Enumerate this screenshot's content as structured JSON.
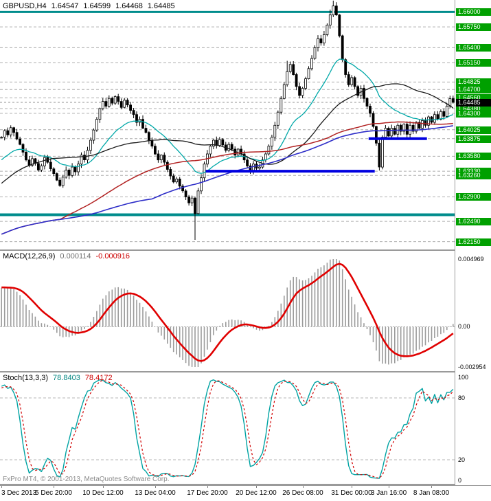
{
  "header": {
    "symbol_period": "GBPUSD,H4",
    "open": "1.64547",
    "high": "1.64599",
    "low": "1.64468",
    "close": "1.64485"
  },
  "macd_panel": {
    "label": "MACD(12,26,9)",
    "value_main": "0.000114",
    "value_signal": "-0.000916",
    "axis_max_label": "0.004969",
    "axis_zero_label": "0.00",
    "axis_min_label": "-0.002954"
  },
  "stoch_panel": {
    "label": "Stoch(13,3,3)",
    "value_k": "78.8403",
    "value_d": "78.4172",
    "axis_labels": [
      {
        "text": "100",
        "value": 100
      },
      {
        "text": "80",
        "value": 80
      },
      {
        "text": "20",
        "value": 20
      },
      {
        "text": "0",
        "value": 0
      }
    ]
  },
  "footer_copyright": "FxPro MT4, © 2001-2013, MetaQuotes Software Corp.",
  "time_axis": {
    "labels": [
      {
        "text": "3 Dec 2013",
        "index": 0
      },
      {
        "text": "5 Dec 20:00",
        "index": 17
      },
      {
        "text": "10 Dec 12:00",
        "index": 33
      },
      {
        "text": "13 Dec 04:00",
        "index": 50
      },
      {
        "text": "17 Dec 20:00",
        "index": 67
      },
      {
        "text": "20 Dec 12:00",
        "index": 83
      },
      {
        "text": "26 Dec 08:00",
        "index": 98
      },
      {
        "text": "31 Dec 00:00",
        "index": 114
      },
      {
        "text": "3 Jan 16:00",
        "index": 126
      },
      {
        "text": "8 Jan 08:00",
        "index": 140
      }
    ]
  },
  "price_axis": {
    "badge_color": "#00a000",
    "current": {
      "text": "1.64485",
      "value": 1.64485
    },
    "badges": [
      {
        "text": "1.66000",
        "value": 1.66
      },
      {
        "text": "1.65750",
        "value": 1.6575
      },
      {
        "text": "1.65400",
        "value": 1.654
      },
      {
        "text": "1.65150",
        "value": 1.6515
      },
      {
        "text": "1.64825",
        "value": 1.64825
      },
      {
        "text": "1.64700",
        "value": 1.647
      },
      {
        "text": "1.64560",
        "value": 1.6456
      },
      {
        "text": "1.64380",
        "value": 1.6438
      },
      {
        "text": "1.64300",
        "value": 1.643
      },
      {
        "text": "1.64025",
        "value": 1.64025
      },
      {
        "text": "1.63875",
        "value": 1.63875
      },
      {
        "text": "1.63580",
        "value": 1.6358
      },
      {
        "text": "1.63330",
        "value": 1.6333
      },
      {
        "text": "1.63260",
        "value": 1.6326
      },
      {
        "text": "1.62900",
        "value": 1.629
      },
      {
        "text": "1.62490",
        "value": 1.6249
      },
      {
        "text": "1.62150",
        "value": 1.6215
      }
    ]
  },
  "chart_data": {
    "type": "candlestick",
    "symbol": "GBPUSD",
    "timeframe": "H4",
    "title": "GBPUSD,H4",
    "price_range": [
      1.6203,
      1.662
    ],
    "current_price": 1.64485,
    "teal_levels": [
      {
        "value": 1.66,
        "width": 3
      },
      {
        "value": 1.626,
        "width": 4
      }
    ],
    "support_segments": [
      {
        "value": 1.6333,
        "from_index": 67,
        "to_index": 122
      },
      {
        "value": 1.63875,
        "from_index": 120,
        "to_index": 139
      }
    ],
    "moving_averages": [
      {
        "name": "ma-teal-ema21",
        "period": 21,
        "method": "ema",
        "color": "#00a8a8",
        "width": 1.3
      },
      {
        "name": "ma-black-sma40",
        "period": 40,
        "method": "sma",
        "color": "#1a1a1a",
        "width": 1.3
      },
      {
        "name": "ma-red-sma100",
        "period": 100,
        "method": "sma",
        "color": "#b22222",
        "width": 1.5
      },
      {
        "name": "ma-blue-sma130",
        "period": 130,
        "method": "sma",
        "color": "#2d2dc8",
        "width": 1.6
      }
    ],
    "macd": {
      "fast": 12,
      "slow": 26,
      "signal": 9,
      "range": [
        -0.002954,
        0.004969
      ],
      "last_main": 0.000114,
      "last_signal": -0.000916
    },
    "stoch": {
      "k_period": 13,
      "slowing": 3,
      "d_period": 3,
      "upper": 80,
      "lower": 20,
      "last_k": 78.8403,
      "last_d": 78.4172
    },
    "prehistory_closes": [
      1.606,
      1.607,
      1.6064,
      1.6073,
      1.6083,
      1.6077,
      1.6085,
      1.6095,
      1.6089,
      1.6098,
      1.6108,
      1.6102,
      1.611,
      1.612,
      1.6114,
      1.6123,
      1.6133,
      1.6127,
      1.6135,
      1.6145,
      1.6139,
      1.6148,
      1.6158,
      1.6152,
      1.616,
      1.617,
      1.6164,
      1.6173,
      1.6183,
      1.6177,
      1.6185,
      1.6195,
      1.6189,
      1.6198,
      1.6208,
      1.6202,
      1.621,
      1.622,
      1.6214,
      1.6223,
      1.6233,
      1.6227,
      1.6235,
      1.6245,
      1.6239,
      1.6248,
      1.6258,
      1.6252,
      1.626,
      1.627,
      1.6265,
      1.6273,
      1.6283,
      1.6277,
      1.6285,
      1.6295,
      1.629,
      1.6298,
      1.6308,
      1.6302,
      1.631,
      1.632,
      1.6315,
      1.6323,
      1.6333,
      1.6327,
      1.6335,
      1.6345,
      1.634,
      1.6348,
      1.6358,
      1.6352,
      1.636,
      1.637,
      1.6365,
      1.6373,
      1.6383,
      1.6377,
      1.6385,
      1.639
    ],
    "closes": [
      1.639,
      1.6401,
      1.6394,
      1.6406,
      1.6398,
      1.6387,
      1.6378,
      1.6365,
      1.6352,
      1.6343,
      1.6354,
      1.6346,
      1.6335,
      1.6342,
      1.6356,
      1.6348,
      1.6337,
      1.6329,
      1.6318,
      1.6309,
      1.6323,
      1.6335,
      1.6326,
      1.634,
      1.6332,
      1.6345,
      1.636,
      1.6352,
      1.6368,
      1.6385,
      1.6402,
      1.642,
      1.6438,
      1.645,
      1.6442,
      1.6455,
      1.6447,
      1.6458,
      1.645,
      1.644,
      1.6452,
      1.6444,
      1.6435,
      1.6428,
      1.6415,
      1.642,
      1.6405,
      1.6398,
      1.6385,
      1.6375,
      1.6362,
      1.6352,
      1.636,
      1.6348,
      1.6336,
      1.6325,
      1.6315,
      1.632,
      1.6308,
      1.63,
      1.629,
      1.628,
      1.6288,
      1.6262,
      1.63,
      1.6322,
      1.6345,
      1.6362,
      1.6375,
      1.6385,
      1.6376,
      1.6386,
      1.6377,
      1.6368,
      1.6378,
      1.637,
      1.636,
      1.637,
      1.6362,
      1.6352,
      1.6342,
      1.6334,
      1.6345,
      1.6338,
      1.634,
      1.6352,
      1.6362,
      1.6375,
      1.639,
      1.641,
      1.6432,
      1.6455,
      1.6478,
      1.65,
      1.6512,
      1.6495,
      1.6475,
      1.646,
      1.6472,
      1.6488,
      1.6505,
      1.6522,
      1.654,
      1.6555,
      1.6548,
      1.6562,
      1.6578,
      1.6595,
      1.661,
      1.6595,
      1.656,
      1.652,
      1.6495,
      1.6478,
      1.649,
      1.6475,
      1.646,
      1.6472,
      1.6455,
      1.6442,
      1.643,
      1.6408,
      1.638,
      1.634,
      1.639,
      1.6405,
      1.6392,
      1.6405,
      1.6395,
      1.641,
      1.64,
      1.6412,
      1.6395,
      1.641,
      1.64,
      1.6415,
      1.6405,
      1.6418,
      1.641,
      1.6424,
      1.6415,
      1.6428,
      1.642,
      1.6433,
      1.6425,
      1.6442,
      1.64547,
      1.64485
    ],
    "extremes": {
      "63": {
        "low": 1.6218
      },
      "93": {
        "high": 1.6518
      },
      "94": {
        "high": 1.6516
      },
      "107": {
        "high": 1.6604
      },
      "108": {
        "high": 1.6619
      },
      "109": {
        "high": 1.6612
      },
      "123": {
        "low": 1.6336
      },
      "147": {
        "high": 1.64599,
        "low": 1.64468
      }
    }
  }
}
